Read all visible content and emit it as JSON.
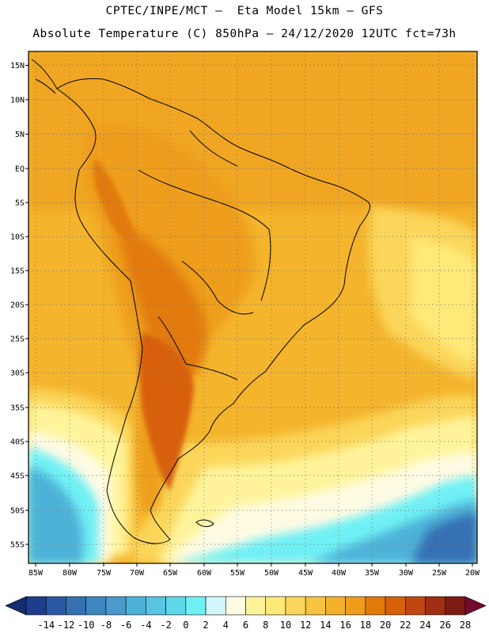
{
  "header": {
    "line1": "CPTEC/INPE/MCT –  Eta Model 15km – GFS",
    "line2": "Absolute Temperature (C) 850hPa – 24/12/2020 12UTC fct=73h"
  },
  "map": {
    "lat_labels": [
      "15N",
      "10N",
      "5N",
      "EQ",
      "5S",
      "10S",
      "15S",
      "20S",
      "25S",
      "30S",
      "35S",
      "40S",
      "45S",
      "50S",
      "55S"
    ],
    "lon_labels": [
      "85W",
      "80W",
      "75W",
      "70W",
      "65W",
      "60W",
      "55W",
      "50W",
      "45W",
      "40W",
      "35W",
      "30W",
      "25W",
      "20W"
    ]
  },
  "colorbar": {
    "labels": [
      "-14",
      "-12",
      "-10",
      "-8",
      "-6",
      "-4",
      "-2",
      "0",
      "2",
      "4",
      "6",
      "8",
      "10",
      "12",
      "14",
      "16",
      "18",
      "20",
      "22",
      "24",
      "26",
      "28"
    ],
    "colors": [
      "#1e3d8c",
      "#2a5aa3",
      "#3570b3",
      "#3d86c0",
      "#4a9bcc",
      "#4eb2d8",
      "#58c6e2",
      "#5fd8ea",
      "#6ff0f5",
      "#d3f7fb",
      "#fffbe3",
      "#fff49c",
      "#ffe978",
      "#fbd65a",
      "#f7c340",
      "#f3b12c",
      "#ee9e1c",
      "#e27a0a",
      "#d86008",
      "#c04810",
      "#a02e12",
      "#7c1a14"
    ],
    "underflow_color": "#142e70",
    "overflow_color": "#740a30"
  }
}
